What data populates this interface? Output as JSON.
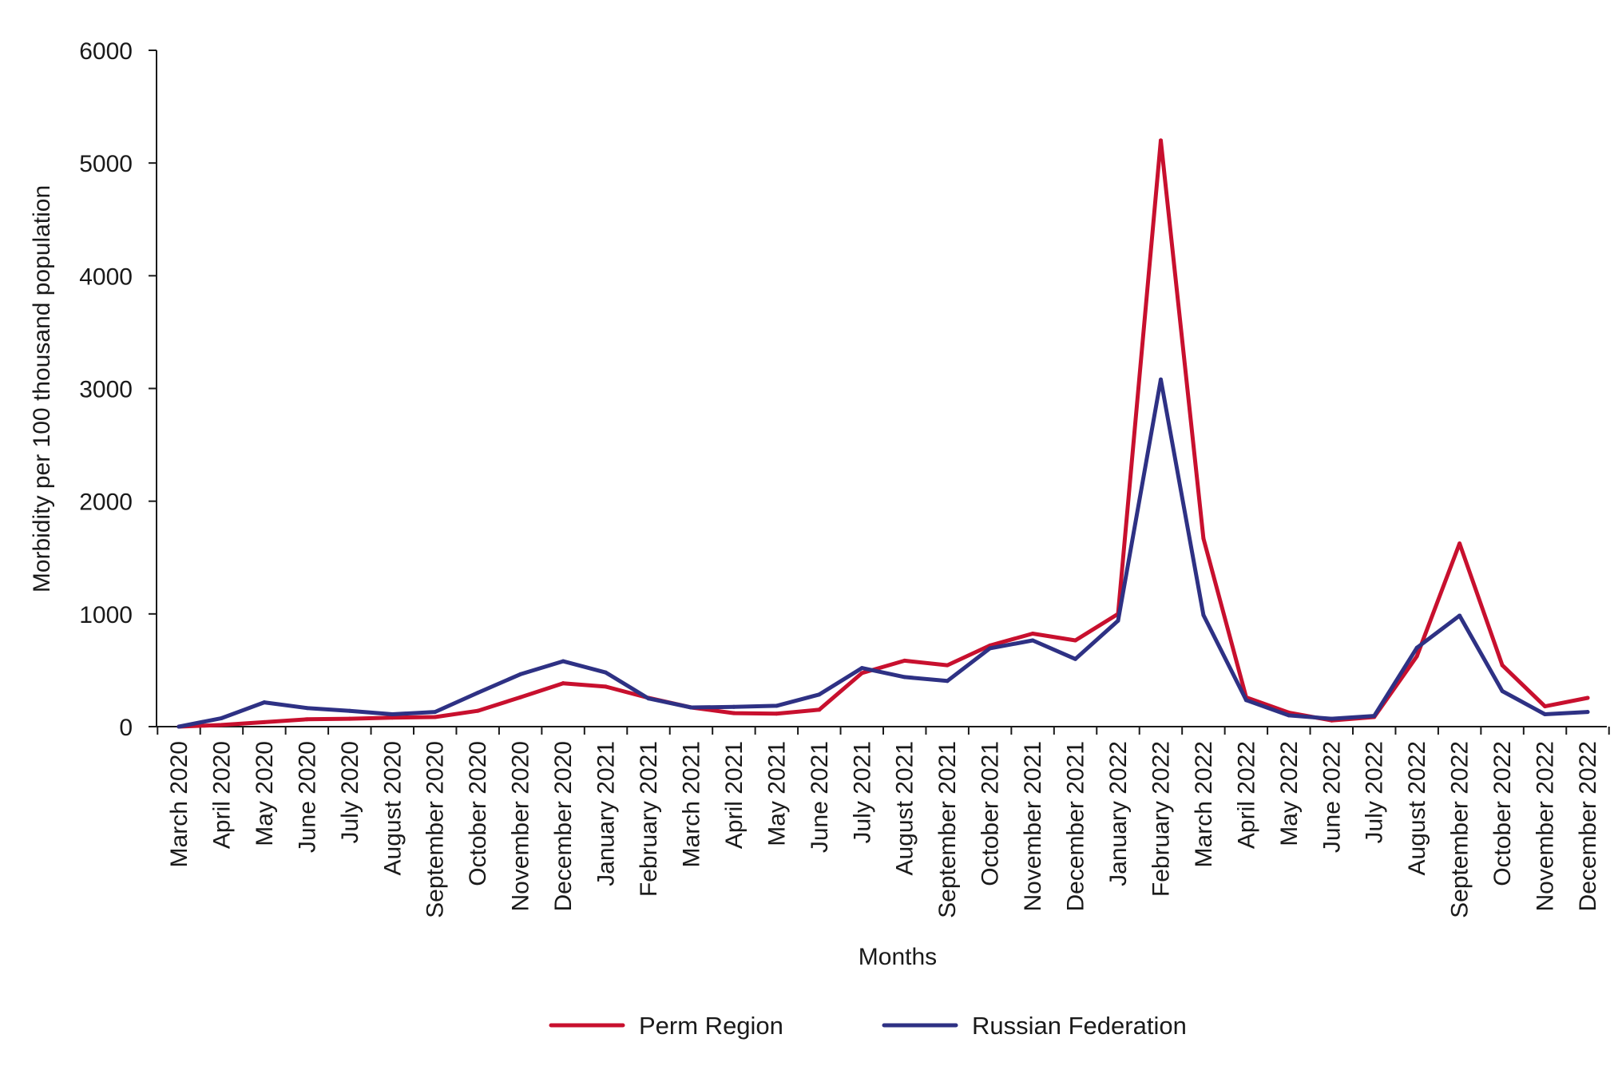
{
  "chart_data": {
    "type": "line",
    "title": "",
    "xlabel": "Months",
    "ylabel": "Morbidity per 100 thousand population",
    "ylim": [
      0,
      6000
    ],
    "yticks": [
      0,
      1000,
      2000,
      3000,
      4000,
      5000,
      6000
    ],
    "ytick_labels": [
      "0",
      "1000",
      "2000",
      "3000",
      "4000",
      "5000",
      "6000"
    ],
    "grid": false,
    "legend_position": "bottom",
    "categories": [
      "March 2020",
      "April 2020",
      "May 2020",
      "June 2020",
      "July 2020",
      "August 2020",
      "September 2020",
      "October 2020",
      "November 2020",
      "December 2020",
      "January 2021",
      "February 2021",
      "March 2021",
      "April 2021",
      "May 2021",
      "June 2021",
      "July 2021",
      "August 2021",
      "September 2021",
      "October 2021",
      "November 2021",
      "December 2021",
      "January 2022",
      "February 2022",
      "March 2022",
      "April 2022",
      "May 2022",
      "June 2022",
      "July 2022",
      "August 2022",
      "September 2022",
      "October 2022",
      "November 2022",
      "December 2022"
    ],
    "series": [
      {
        "name": "Perm Region",
        "color": "#c8102e",
        "values": [
          0,
          15,
          40,
          65,
          70,
          80,
          85,
          140,
          260,
          385,
          355,
          255,
          170,
          120,
          115,
          150,
          475,
          585,
          545,
          720,
          825,
          765,
          1000,
          5200,
          1670,
          260,
          125,
          55,
          85,
          625,
          1625,
          545,
          180,
          255
        ]
      },
      {
        "name": "Russian Federation",
        "color": "#2e3184",
        "values": [
          0,
          75,
          215,
          165,
          140,
          110,
          130,
          300,
          465,
          580,
          480,
          250,
          170,
          175,
          185,
          285,
          520,
          440,
          405,
          695,
          765,
          600,
          940,
          3080,
          990,
          235,
          100,
          70,
          95,
          700,
          985,
          315,
          110,
          130
        ]
      }
    ]
  }
}
